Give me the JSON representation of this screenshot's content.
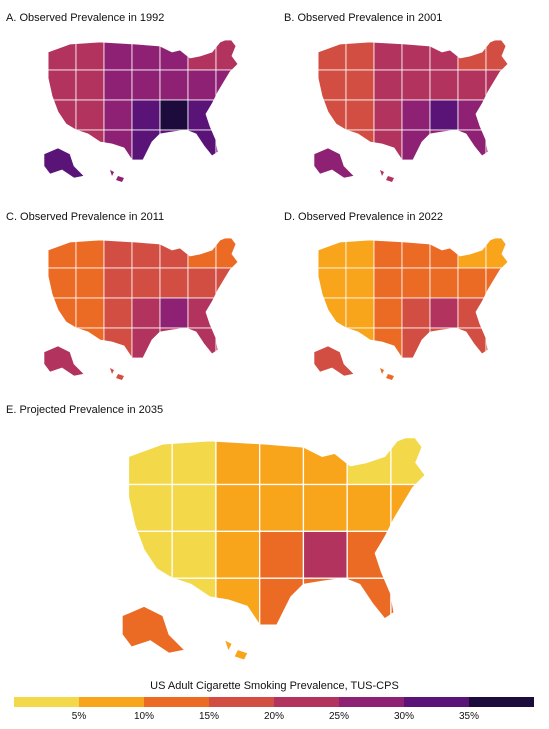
{
  "panels": [
    {
      "title": "A. Observed Prevalence in 1992"
    },
    {
      "title": "B. Observed Prevalence in 2001"
    },
    {
      "title": "C. Observed Prevalence in 2011"
    },
    {
      "title": "D. Observed Prevalence in 2022"
    },
    {
      "title": "E. Projected Prevalence in 2035"
    }
  ],
  "legend": {
    "title": "US Adult Cigarette Smoking Prevalence, TUS-CPS",
    "ticks": [
      "5%",
      "10%",
      "15%",
      "20%",
      "25%",
      "30%",
      "35%"
    ],
    "scale_min": 0,
    "scale_max": 40,
    "bins": [
      {
        "from": 0,
        "to": 5,
        "color": "#f3d94a"
      },
      {
        "from": 5,
        "to": 10,
        "color": "#f8a51b"
      },
      {
        "from": 10,
        "to": 15,
        "color": "#ec6b24"
      },
      {
        "from": 15,
        "to": 20,
        "color": "#d24e42"
      },
      {
        "from": 20,
        "to": 25,
        "color": "#b2335e"
      },
      {
        "from": 25,
        "to": 30,
        "color": "#8f2174"
      },
      {
        "from": 30,
        "to": 35,
        "color": "#5a1478"
      },
      {
        "from": 35,
        "to": 40,
        "color": "#1e0b3e"
      }
    ]
  },
  "map_colors": {
    "A": {
      "base": "#8f2174",
      "accent": "#5a1478",
      "south": "#b2335e",
      "dark": "#1e0b3e"
    },
    "B": {
      "base": "#b2335e",
      "accent": "#8f2174",
      "south": "#d24e42",
      "dark": "#5a1478"
    },
    "C": {
      "base": "#d24e42",
      "accent": "#b2335e",
      "south": "#ec6b24",
      "dark": "#8f2174"
    },
    "D": {
      "base": "#ec6b24",
      "accent": "#d24e42",
      "south": "#f8a51b",
      "dark": "#b2335e"
    },
    "E": {
      "base": "#f8a51b",
      "accent": "#ec6b24",
      "south": "#f3d94a",
      "dark": "#b2335e"
    }
  }
}
